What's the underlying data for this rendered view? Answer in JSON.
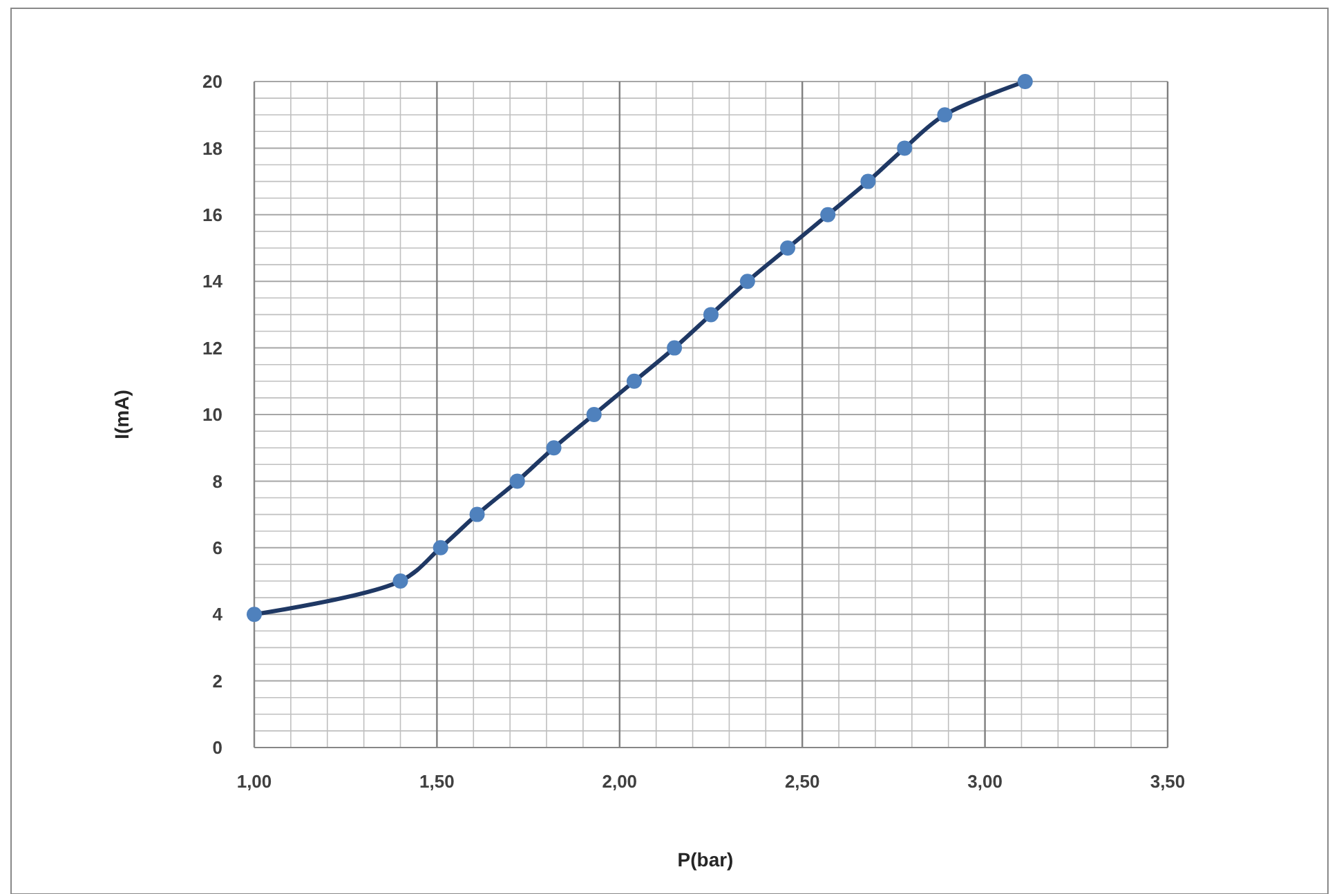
{
  "chart_data": {
    "type": "line",
    "xlabel": "P(bar)",
    "ylabel": "I(mA)",
    "x": [
      1.0,
      1.4,
      1.51,
      1.61,
      1.72,
      1.82,
      1.93,
      2.04,
      2.15,
      2.25,
      2.35,
      2.46,
      2.57,
      2.68,
      2.78,
      2.89,
      3.11
    ],
    "series": [
      {
        "color": "#1f3864",
        "values": [
          4,
          5,
          6,
          7,
          8,
          9,
          10,
          11,
          12,
          13,
          14,
          15,
          16,
          17,
          18,
          19,
          20
        ]
      }
    ],
    "xlim": [
      1,
      3.5
    ],
    "ylim": [
      0,
      20
    ],
    "xticks": [
      {
        "value": 1,
        "label": "1,00"
      },
      {
        "value": 1.5,
        "label": "1,50"
      },
      {
        "value": 2,
        "label": "2,00"
      },
      {
        "value": 2.5,
        "label": "2,50"
      },
      {
        "value": 3,
        "label": "3,00"
      },
      {
        "value": 3.5,
        "label": "3,50"
      }
    ],
    "yticks": [
      0,
      2,
      4,
      6,
      8,
      10,
      12,
      14,
      16,
      18,
      20
    ],
    "grid": true,
    "marker": "circle",
    "line_style": "solid"
  }
}
